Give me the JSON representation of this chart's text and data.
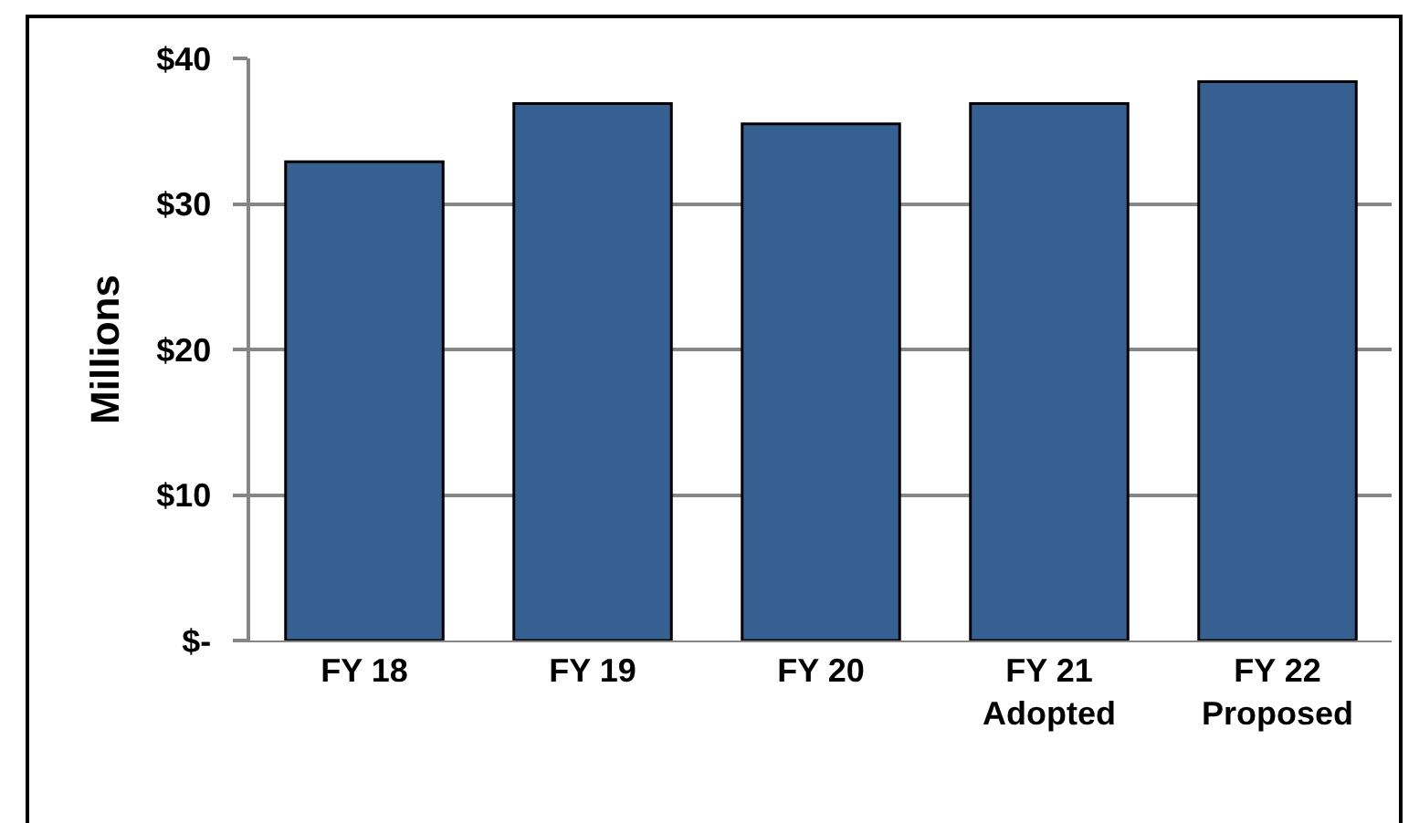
{
  "chart_data": {
    "type": "bar",
    "ylabel": "Millions",
    "categories": [
      "FY 18",
      "FY 19",
      "FY 20",
      "FY 21\nAdopted",
      "FY 22\nProposed"
    ],
    "values": [
      32.9,
      36.9,
      35.5,
      36.9,
      38.4
    ],
    "color": "#366092",
    "ylim": [
      0,
      40
    ],
    "yticks": [
      {
        "value": 0,
        "label": "$-"
      },
      {
        "value": 10,
        "label": "$10"
      },
      {
        "value": 20,
        "label": "$20"
      },
      {
        "value": 30,
        "label": "$30"
      },
      {
        "value": 40,
        "label": "$40"
      }
    ],
    "grid": "y"
  }
}
